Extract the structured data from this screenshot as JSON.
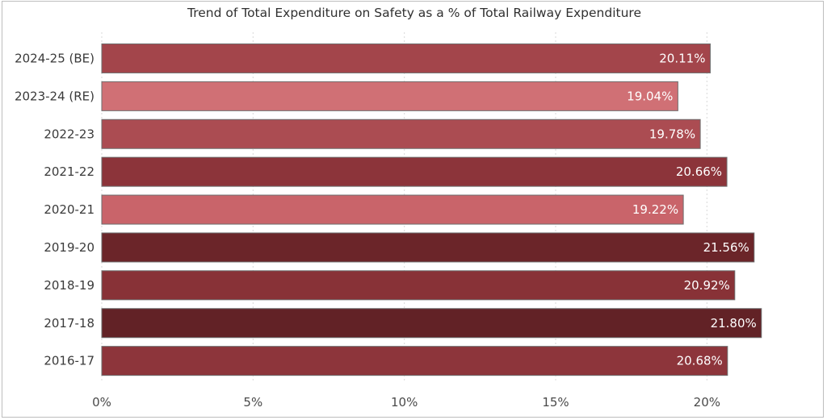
{
  "chart_data": {
    "type": "bar",
    "orientation": "horizontal",
    "title": "Trend of Total Expenditure on Safety as a % of Total Railway Expenditure",
    "categories": [
      "2024-25 (BE)",
      "2023-24 (RE)",
      "2022-23",
      "2021-22",
      "2020-21",
      "2019-20",
      "2018-19",
      "2017-18",
      "2016-17"
    ],
    "values": [
      20.11,
      19.04,
      19.78,
      20.66,
      19.22,
      21.56,
      20.92,
      21.8,
      20.68
    ],
    "value_labels": [
      "20.11%",
      "19.04%",
      "19.78%",
      "20.66%",
      "19.22%",
      "21.56%",
      "20.92%",
      "21.80%",
      "20.68%"
    ],
    "bar_colors": [
      "#a3454b",
      "#d07075",
      "#ab4c52",
      "#8c343a",
      "#c9646a",
      "#6b2529",
      "#883237",
      "#622226",
      "#8d353b"
    ],
    "xlim": [
      0,
      22.5
    ],
    "xticks": [
      0,
      5,
      10,
      15,
      20
    ],
    "xtick_labels": [
      "0%",
      "5%",
      "10%",
      "15%",
      "20%"
    ],
    "xlabel": "",
    "ylabel": "",
    "grid": true,
    "legend": "none"
  }
}
